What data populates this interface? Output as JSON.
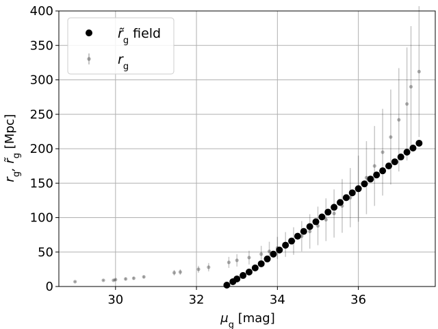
{
  "chart_data": {
    "type": "scatter",
    "xlabel": "μ_g [mag]",
    "ylabel": "r_g, r̃_g [Mpc]",
    "xlim": [
      28.6,
      37.9
    ],
    "ylim": [
      0,
      400
    ],
    "xticks": [
      30,
      32,
      34,
      36
    ],
    "yticks": [
      0,
      50,
      100,
      150,
      200,
      250,
      300,
      350,
      400
    ],
    "grid": true,
    "legend": {
      "placement": "top-left"
    },
    "series": [
      {
        "name": "r̃_g field",
        "marker": "large-circle",
        "color": "#000000",
        "x": [
          32.75,
          32.9,
          33.0,
          33.15,
          33.3,
          33.45,
          33.6,
          33.75,
          33.9,
          34.05,
          34.2,
          34.35,
          34.5,
          34.65,
          34.8,
          34.95,
          35.1,
          35.25,
          35.4,
          35.55,
          35.7,
          35.85,
          36.0,
          36.15,
          36.3,
          36.45,
          36.6,
          36.75,
          36.9,
          37.05,
          37.2,
          37.35,
          37.5
        ],
        "y": [
          2,
          7,
          11,
          16,
          21,
          27,
          33,
          40,
          47,
          53,
          60,
          66,
          73,
          80,
          87,
          94,
          101,
          108,
          115,
          122,
          129,
          136,
          142,
          149,
          156,
          162,
          168,
          175,
          181,
          188,
          195,
          201,
          208
        ]
      },
      {
        "name": "r_g",
        "marker": "small-circle-errorbar",
        "color": "#000000",
        "x": [
          29.0,
          29.7,
          29.95,
          30.0,
          30.25,
          30.45,
          30.7,
          31.45,
          31.6,
          32.05,
          32.3,
          32.8,
          33.0,
          33.3,
          33.6,
          33.8,
          34.0,
          34.2,
          34.4,
          34.6,
          34.8,
          35.0,
          35.2,
          35.4,
          35.6,
          35.8,
          36.0,
          36.2,
          36.4,
          36.6,
          36.8,
          37.0,
          37.2,
          37.3,
          37.5
        ],
        "y": [
          7,
          9,
          9,
          10,
          11,
          12,
          14,
          20,
          21,
          25,
          28,
          35,
          38,
          42,
          47,
          51,
          56,
          61,
          66,
          73,
          80,
          88,
          97,
          106,
          117,
          129,
          142,
          158,
          175,
          195,
          217,
          242,
          265,
          290,
          312
        ],
        "err": [
          1,
          1,
          1,
          1,
          2,
          2,
          2,
          4,
          4,
          5,
          6,
          8,
          9,
          10,
          12,
          14,
          16,
          18,
          20,
          22,
          25,
          28,
          31,
          35,
          39,
          43,
          48,
          53,
          58,
          63,
          69,
          75,
          82,
          88,
          95
        ]
      }
    ]
  }
}
